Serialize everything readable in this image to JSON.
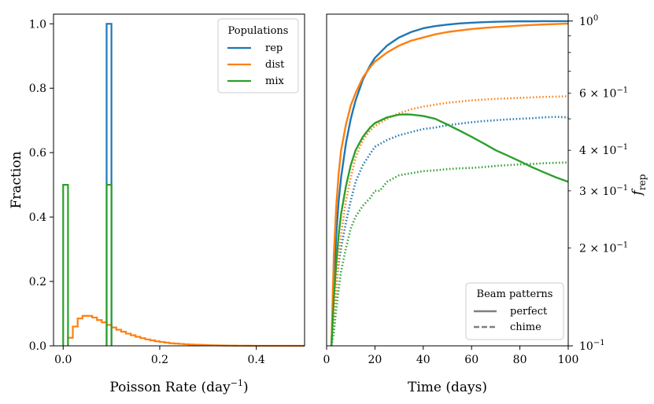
{
  "colors": {
    "rep": "#1f77b4",
    "dist": "#ff7f0e",
    "mix": "#2ca02c",
    "beam_legend": "#7f7f7f",
    "axes": "#000000",
    "legend_border": "#cccccc"
  },
  "chart_data": [
    {
      "type": "histogram-step",
      "panel": "left",
      "xlabel": "Poisson Rate (day",
      "xlabel_sup": "−1",
      "xlabel_close": ")",
      "ylabel": "Fraction",
      "xlim": [
        -0.02,
        0.5
      ],
      "ylim": [
        0.0,
        1.03
      ],
      "xticks": [
        0.0,
        0.2,
        0.4
      ],
      "xtick_labels": [
        "0.0",
        "0.2",
        "0.4"
      ],
      "yticks": [
        0.0,
        0.2,
        0.4,
        0.6,
        0.8,
        1.0
      ],
      "ytick_labels": [
        "0.0",
        "0.2",
        "0.4",
        "0.6",
        "0.8",
        "1.0"
      ],
      "legend": {
        "title": "Populations",
        "position": "top-right",
        "entries": [
          "rep",
          "dist",
          "mix"
        ]
      },
      "bin_width": 0.01,
      "series": [
        {
          "name": "rep",
          "color_key": "rep",
          "bins": [
            [
              0.09,
              0.1,
              1.0
            ]
          ]
        },
        {
          "name": "mix",
          "color_key": "mix",
          "bins": [
            [
              0.0,
              0.01,
              0.5
            ],
            [
              0.09,
              0.1,
              0.5
            ]
          ]
        },
        {
          "name": "dist",
          "color_key": "dist",
          "start": 0.01,
          "values": [
            0.025,
            0.06,
            0.085,
            0.093,
            0.093,
            0.088,
            0.08,
            0.073,
            0.065,
            0.057,
            0.05,
            0.044,
            0.038,
            0.033,
            0.028,
            0.024,
            0.02,
            0.017,
            0.014,
            0.012,
            0.01,
            0.008,
            0.007,
            0.006,
            0.005,
            0.004,
            0.0035,
            0.003,
            0.0025,
            0.002,
            0.0015,
            0.0012,
            0.001,
            0.0008,
            0.0006,
            0.0005,
            0.0004,
            0.0003,
            0.0002,
            0.0001,
            0.0001
          ]
        }
      ]
    },
    {
      "type": "line",
      "panel": "right",
      "xlabel": "Time (days)",
      "ylabel": "f",
      "ylabel_sub": "rep",
      "yscale": "log",
      "xlim": [
        0,
        100
      ],
      "ylim": [
        0.1,
        1.05
      ],
      "xticks": [
        0,
        20,
        40,
        60,
        80,
        100
      ],
      "xtick_labels": [
        "0",
        "20",
        "40",
        "60",
        "80",
        "100"
      ],
      "yticks_major": [
        0.1,
        1.0
      ],
      "ytick_major_labels": [
        [
          "10",
          "−1"
        ],
        [
          "10",
          "0"
        ]
      ],
      "yticks_minor_labeled": [
        0.2,
        0.3,
        0.4,
        0.6
      ],
      "ytick_minor_labels": [
        [
          "2 × 10",
          "−1"
        ],
        [
          "3 × 10",
          "−1"
        ],
        [
          "4 × 10",
          "−1"
        ],
        [
          "6 × 10",
          "−1"
        ]
      ],
      "yticks_minor_unlabeled": [
        0.5,
        0.7,
        0.8,
        0.9
      ],
      "legend": {
        "title": "Beam patterns",
        "position": "lower-right",
        "entries": [
          "perfect",
          "chime"
        ]
      },
      "series": [
        {
          "name": "rep",
          "beam": "perfect",
          "color_key": "rep",
          "style": "solid",
          "x": [
            2,
            3,
            4,
            5,
            6,
            8,
            10,
            12,
            15,
            18,
            20,
            25,
            30,
            35,
            40,
            45,
            50,
            55,
            60,
            65,
            70,
            75,
            80,
            85,
            90,
            95,
            100
          ],
          "y": [
            0.1,
            0.16,
            0.22,
            0.28,
            0.33,
            0.42,
            0.5,
            0.57,
            0.66,
            0.73,
            0.77,
            0.84,
            0.89,
            0.925,
            0.95,
            0.965,
            0.975,
            0.983,
            0.988,
            0.992,
            0.995,
            0.997,
            0.998,
            0.998,
            0.999,
            0.999,
            0.999
          ]
        },
        {
          "name": "dist",
          "beam": "perfect",
          "color_key": "dist",
          "style": "solid",
          "x": [
            2,
            3,
            4,
            5,
            6,
            8,
            10,
            12,
            15,
            18,
            20,
            25,
            30,
            35,
            40,
            45,
            50,
            55,
            60,
            65,
            70,
            75,
            80,
            85,
            90,
            95,
            100
          ],
          "y": [
            0.1,
            0.19,
            0.27,
            0.34,
            0.4,
            0.48,
            0.55,
            0.6,
            0.67,
            0.72,
            0.75,
            0.8,
            0.84,
            0.87,
            0.89,
            0.91,
            0.925,
            0.935,
            0.945,
            0.952,
            0.958,
            0.963,
            0.968,
            0.972,
            0.976,
            0.979,
            0.982
          ]
        },
        {
          "name": "mix",
          "beam": "perfect",
          "color_key": "mix",
          "style": "solid",
          "x": [
            2,
            3,
            4,
            5,
            6,
            8,
            10,
            12,
            15,
            18,
            20,
            25,
            30,
            33,
            35,
            40,
            45,
            50,
            55,
            60,
            65,
            70,
            75,
            80,
            85,
            90,
            95,
            100
          ],
          "y": [
            0.1,
            0.14,
            0.18,
            0.22,
            0.255,
            0.31,
            0.36,
            0.4,
            0.44,
            0.47,
            0.485,
            0.505,
            0.515,
            0.516,
            0.515,
            0.51,
            0.5,
            0.48,
            0.46,
            0.44,
            0.42,
            0.4,
            0.385,
            0.37,
            0.355,
            0.342,
            0.33,
            0.32
          ]
        },
        {
          "name": "rep",
          "beam": "chime",
          "color_key": "rep",
          "style": "dotted",
          "x": [
            2,
            3,
            4,
            5,
            6,
            8,
            10,
            12,
            15,
            18,
            20,
            25,
            30,
            35,
            40,
            45,
            50,
            55,
            60,
            65,
            70,
            75,
            80,
            85,
            90,
            95,
            100
          ],
          "y": [
            0.1,
            0.12,
            0.15,
            0.18,
            0.2,
            0.24,
            0.28,
            0.32,
            0.36,
            0.39,
            0.41,
            0.43,
            0.445,
            0.455,
            0.465,
            0.47,
            0.478,
            0.483,
            0.488,
            0.492,
            0.495,
            0.498,
            0.5,
            0.502,
            0.505,
            0.507,
            0.505
          ]
        },
        {
          "name": "dist",
          "beam": "chime",
          "color_key": "dist",
          "style": "dotted",
          "x": [
            2,
            3,
            4,
            5,
            6,
            8,
            10,
            12,
            15,
            18,
            20,
            25,
            30,
            35,
            40,
            45,
            50,
            55,
            60,
            65,
            70,
            75,
            80,
            85,
            90,
            95,
            100
          ],
          "y": [
            0.1,
            0.12,
            0.15,
            0.19,
            0.22,
            0.28,
            0.33,
            0.38,
            0.43,
            0.46,
            0.475,
            0.5,
            0.52,
            0.535,
            0.545,
            0.553,
            0.56,
            0.565,
            0.57,
            0.573,
            0.576,
            0.578,
            0.58,
            0.582,
            0.584,
            0.585,
            0.587
          ]
        },
        {
          "name": "mix",
          "beam": "chime",
          "color_key": "mix",
          "style": "dotted",
          "x": [
            2,
            3,
            4,
            5,
            6,
            8,
            10,
            12,
            15,
            18,
            20,
            22,
            25,
            30,
            35,
            40,
            45,
            50,
            55,
            60,
            65,
            70,
            75,
            80,
            85,
            90,
            95,
            100
          ],
          "y": [
            0.1,
            0.11,
            0.13,
            0.15,
            0.17,
            0.2,
            0.23,
            0.25,
            0.27,
            0.285,
            0.3,
            0.3,
            0.32,
            0.335,
            0.34,
            0.345,
            0.347,
            0.35,
            0.352,
            0.353,
            0.355,
            0.358,
            0.36,
            0.362,
            0.363,
            0.365,
            0.366,
            0.367
          ]
        }
      ]
    }
  ]
}
